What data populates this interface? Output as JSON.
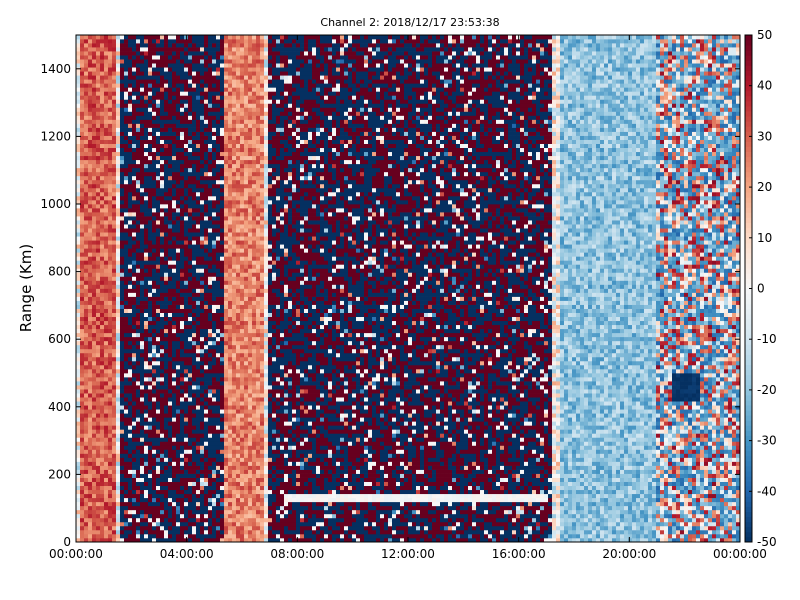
{
  "chart_data": {
    "type": "heatmap",
    "title": "Channel 2: 2018/12/17 23:53:38",
    "xlabel": "",
    "ylabel": "Range (Km)",
    "x_ticks": [
      "00:00:00",
      "04:00:00",
      "08:00:00",
      "12:00:00",
      "16:00:00",
      "20:00:00",
      "00:00:00"
    ],
    "x_range_hours": [
      0,
      24
    ],
    "y_ticks": [
      0,
      200,
      400,
      600,
      800,
      1000,
      1200,
      1400
    ],
    "ylim": [
      0,
      1500
    ],
    "colorbar": {
      "ticks": [
        -50,
        -40,
        -30,
        -20,
        -10,
        0,
        10,
        20,
        30,
        40,
        50
      ],
      "range": [
        -50,
        50
      ],
      "colormap": [
        "#053061",
        "#2166ac",
        "#4393c3",
        "#92c5de",
        "#d1e5f0",
        "#f7f7f7",
        "#fddbc7",
        "#f4a582",
        "#d6604d",
        "#b2182b",
        "#67001f"
      ]
    },
    "features": [
      {
        "name": "warm band",
        "x_hours": [
          0.1,
          1.4
        ],
        "value": 30
      },
      {
        "name": "warm band",
        "x_hours": [
          5.4,
          6.8
        ],
        "value": 25
      },
      {
        "name": "noise region",
        "x_hours": [
          1.6,
          5.3
        ],
        "value": "random ±50"
      },
      {
        "name": "noise region",
        "x_hours": [
          7.0,
          17.2
        ],
        "value": "random ±50"
      },
      {
        "name": "cool region",
        "x_hours": [
          17.5,
          21.0
        ],
        "value": -20
      },
      {
        "name": "strong negative blob",
        "x_hours": [
          21.6,
          22.6
        ],
        "y_km": [
          420,
          500
        ],
        "value": -50
      },
      {
        "name": "white strip",
        "x_hours": [
          7.5,
          17.0
        ],
        "y_km": [
          125,
          140
        ],
        "value": 0
      }
    ]
  }
}
